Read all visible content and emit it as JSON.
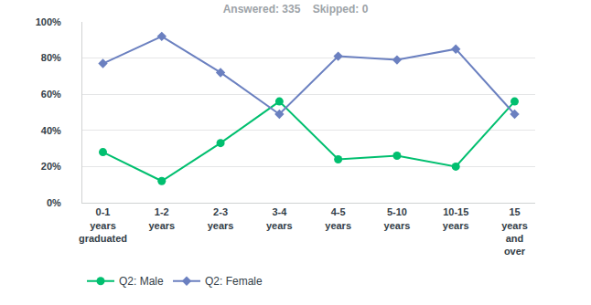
{
  "chart_data": {
    "type": "line",
    "title": "Answered: 335    Skipped: 0",
    "categories": [
      "0-1 years graduated",
      "1-2 years",
      "2-3 years",
      "3-4 years",
      "4-5 years",
      "5-10 years",
      "10-15 years",
      "15 years and over"
    ],
    "series": [
      {
        "name": "Q2: Male",
        "color": "#00bf6f",
        "marker": "circle",
        "values": [
          28,
          12,
          33,
          56,
          24,
          26,
          20,
          56
        ]
      },
      {
        "name": "Q2: Female",
        "color": "#6b80c0",
        "marker": "diamond",
        "values": [
          77,
          92,
          72,
          49,
          81,
          79,
          85,
          49
        ]
      }
    ],
    "ylim": [
      0,
      100
    ],
    "yticks": [
      {
        "value": 0,
        "label": "0%"
      },
      {
        "value": 20,
        "label": "20%"
      },
      {
        "value": 40,
        "label": "40%"
      },
      {
        "value": 60,
        "label": "60%"
      },
      {
        "value": 80,
        "label": "80%"
      },
      {
        "value": 100,
        "label": "100%"
      }
    ],
    "grid": true,
    "legend": "bottom left"
  }
}
